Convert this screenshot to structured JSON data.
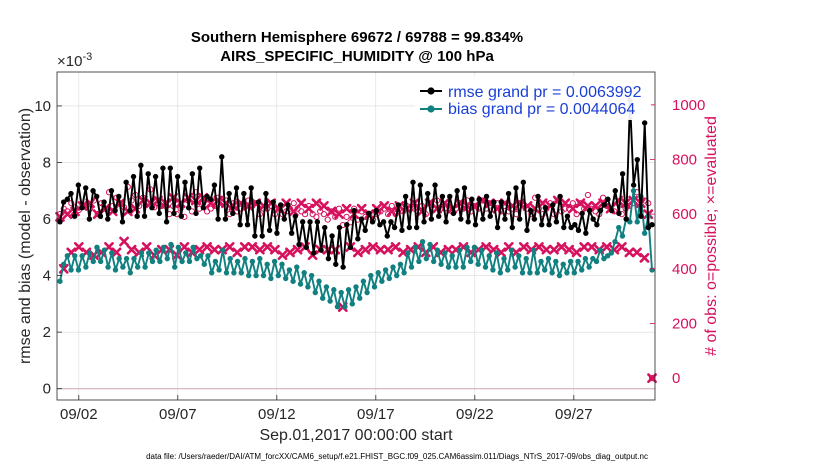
{
  "chart_data": {
    "type": "line",
    "title": "Southern Hemisphere 69672 / 69788 = 99.834%",
    "subtitle": "AIRS_SPECIFIC_HUMIDITY @ 100 hPa",
    "xlabel": "Sep.01,2017 00:00:00 start",
    "ylabel": "rmse and bias (model - observation)",
    "y2label": "# of obs: o=possible; ×=evaluated",
    "y_exponent": "×10",
    "y_exponent_power": "-3",
    "x_tick_labels": [
      "09/02",
      "09/07",
      "09/12",
      "09/17",
      "09/22",
      "09/27"
    ],
    "x_tick_values": [
      2,
      7,
      12,
      17,
      22,
      27
    ],
    "xlim": [
      0.9,
      31.1
    ],
    "y_tick_labels": [
      "0",
      "2",
      "4",
      "6",
      "8",
      "10"
    ],
    "y_tick_values": [
      0,
      2,
      4,
      6,
      8,
      10
    ],
    "ylim": [
      -0.4,
      11.2
    ],
    "y2_tick_labels": [
      "0",
      "200",
      "400",
      "600",
      "800",
      "1000"
    ],
    "y2_tick_values": [
      0,
      200,
      400,
      600,
      800,
      1000
    ],
    "y2lim": [
      -80,
      1120
    ],
    "legend_location": "top-right",
    "colors": {
      "rmse": "#000000",
      "bias": "#118080",
      "obs": "#d6115e"
    },
    "series": [
      {
        "name": "rmse grand pr = 0.0063992",
        "axis": "left",
        "values": [
          5.9,
          6.6,
          6.7,
          6.9,
          6.1,
          7.2,
          6.4,
          7.1,
          6.0,
          7.0,
          6.8,
          6.1,
          6.6,
          6.0,
          7.0,
          6.3,
          6.8,
          5.9,
          7.3,
          6.3,
          7.5,
          6.1,
          7.9,
          6.1,
          7.6,
          6.4,
          7.5,
          6.2,
          7.8,
          5.9,
          7.8,
          6.2,
          7.5,
          6.1,
          7.3,
          6.4,
          7.6,
          6.2,
          7.8,
          6.4,
          6.8,
          6.7,
          7.2,
          6.0,
          8.2,
          6.0,
          6.9,
          6.2,
          7.1,
          5.8,
          6.9,
          5.8,
          7.1,
          5.4,
          6.6,
          5.4,
          6.9,
          5.6,
          6.6,
          5.5,
          6.5,
          6.0,
          6.5,
          5.5,
          6.1,
          5.1,
          5.9,
          5.0,
          5.9,
          4.8,
          5.9,
          4.9,
          5.7,
          4.6,
          5.4,
          4.4,
          5.7,
          4.3,
          5.8,
          5.0,
          6.3,
          5.3,
          6.0,
          5.6,
          6.2,
          5.9,
          6.3,
          5.8,
          5.9,
          5.4,
          5.9,
          5.7,
          6.5,
          5.6,
          6.8,
          5.7,
          7.3,
          5.7,
          7.2,
          5.9,
          6.9,
          6.0,
          7.2,
          6.1,
          6.8,
          5.9,
          6.8,
          6.2,
          7.0,
          6.0,
          7.1,
          5.9,
          6.7,
          5.8,
          6.7,
          6.0,
          6.8,
          6.1,
          6.6,
          5.7,
          6.6,
          6.0,
          6.9,
          5.7,
          7.1,
          6.0,
          7.3,
          5.6,
          6.3,
          6.0,
          6.8,
          5.8,
          6.4,
          5.8,
          6.5,
          5.9,
          6.8,
          5.7,
          6.1,
          5.7,
          5.8,
          5.6,
          6.2,
          5.5,
          6.3,
          6.0,
          5.8,
          6.3,
          6.5,
          6.7,
          6.3,
          7.0,
          6.2,
          7.6,
          6.0,
          10.2,
          7.2,
          8.1,
          6.1,
          9.4,
          5.7,
          5.8
        ]
      },
      {
        "name": "bias grand pr = 0.0044064",
        "axis": "left",
        "values": [
          3.8,
          4.4,
          4.7,
          4.2,
          4.7,
          4.2,
          4.7,
          4.3,
          4.8,
          4.5,
          5.0,
          4.5,
          4.9,
          4.3,
          4.8,
          4.2,
          4.6,
          4.3,
          4.6,
          4.1,
          4.6,
          4.3,
          4.8,
          4.3,
          4.8,
          4.5,
          4.9,
          4.5,
          5.0,
          4.6,
          5.1,
          4.3,
          5.0,
          4.5,
          4.8,
          4.5,
          5.0,
          4.6,
          4.7,
          4.4,
          4.7,
          4.1,
          4.5,
          4.2,
          4.9,
          4.1,
          4.6,
          4.1,
          4.5,
          4.1,
          4.6,
          4.0,
          4.5,
          4.0,
          4.6,
          4.0,
          4.4,
          3.9,
          4.5,
          4.0,
          4.4,
          3.9,
          4.2,
          3.8,
          4.3,
          3.7,
          4.1,
          3.6,
          4.0,
          3.4,
          3.8,
          3.2,
          3.6,
          3.1,
          3.5,
          2.9,
          3.4,
          2.9,
          3.5,
          3.0,
          3.6,
          3.2,
          3.8,
          3.4,
          4.0,
          3.6,
          4.1,
          3.8,
          4.2,
          3.9,
          4.3,
          4.0,
          4.4,
          4.1,
          4.8,
          4.3,
          5.0,
          4.5,
          5.2,
          4.6,
          5.1,
          4.5,
          4.9,
          4.4,
          4.8,
          4.3,
          4.7,
          4.3,
          4.9,
          4.3,
          5.0,
          4.5,
          5.0,
          4.4,
          4.9,
          4.3,
          4.7,
          4.2,
          4.8,
          4.1,
          4.6,
          4.2,
          4.9,
          4.3,
          4.7,
          4.1,
          4.6,
          4.1,
          4.9,
          4.1,
          4.5,
          4.2,
          4.6,
          4.1,
          4.5,
          4.0,
          4.4,
          4.1,
          4.5,
          4.1,
          4.5,
          4.2,
          4.6,
          4.3,
          4.6,
          4.5,
          4.9,
          4.6,
          4.7,
          4.8,
          5.2,
          5.7,
          5.4,
          6.0,
          5.9,
          7.0,
          5.9,
          6.8,
          5.5,
          6.1,
          4.2
        ]
      },
      {
        "name": "possible",
        "axis": "right",
        "marker": "circle",
        "values": [
          600,
          620,
          610,
          640,
          625,
          615,
          630,
          625,
          620,
          650,
          600,
          640,
          620,
          680,
          630,
          660,
          640,
          625,
          700,
          650,
          670,
          630,
          660,
          640,
          690,
          625,
          640,
          630,
          630,
          600,
          630,
          600,
          620,
          590,
          650,
          610,
          680,
          620,
          640,
          610,
          620,
          630,
          660,
          640,
          650,
          600,
          640,
          610,
          620,
          630,
          650,
          630,
          640,
          600,
          620,
          620,
          630,
          600,
          620,
          600,
          610,
          620,
          640,
          620,
          610,
          600,
          630,
          600,
          590,
          610,
          600,
          580,
          610,
          590,
          620,
          560,
          590,
          570,
          620,
          580,
          610,
          590,
          600,
          580,
          600,
          610,
          620,
          600,
          630,
          600,
          620,
          610,
          630,
          620,
          620,
          610,
          630,
          600,
          640,
          620,
          650,
          620,
          620,
          630,
          610,
          620,
          640,
          620,
          650,
          610,
          630,
          620,
          650,
          620,
          640,
          620,
          640,
          610,
          630,
          610,
          620,
          600,
          640,
          630,
          620,
          600,
          660,
          620,
          600,
          620,
          640,
          600,
          650,
          610,
          620,
          620,
          640,
          600,
          640,
          620,
          670,
          620,
          610,
          600,
          660,
          630,
          620,
          610,
          640,
          600,
          620,
          630,
          640,
          680,
          610,
          650,
          640,
          0
        ]
      },
      {
        "name": "evaluated",
        "axis": "right",
        "marker": "x",
        "values": [
          590,
          400,
          600,
          460,
          610,
          480,
          630,
          460,
          640,
          450,
          600,
          460,
          620,
          480,
          610,
          460,
          640,
          500,
          610,
          470,
          620,
          460,
          650,
          480,
          640,
          450,
          650,
          470,
          640,
          470,
          660,
          450,
          640,
          480,
          660,
          460,
          650,
          470,
          660,
          480,
          640,
          470,
          650,
          470,
          640,
          480,
          630,
          460,
          640,
          480,
          630,
          480,
          640,
          470,
          630,
          480,
          640,
          470,
          620,
          450,
          640,
          460,
          610,
          470,
          640,
          480,
          620,
          450,
          640,
          470,
          630,
          470,
          610,
          470,
          600,
          260,
          620,
          480,
          600,
          460,
          620,
          470,
          600,
          480,
          620,
          470,
          630,
          470,
          610,
          480,
          630,
          460,
          620,
          470,
          640,
          480,
          610,
          460,
          640,
          480,
          620,
          460,
          640,
          470,
          620,
          470,
          640,
          480,
          630,
          460,
          630,
          470,
          650,
          480,
          640,
          470,
          620,
          460,
          640,
          480,
          630,
          460,
          640,
          480,
          630,
          470,
          620,
          480,
          640,
          470,
          630,
          470,
          650,
          480,
          640,
          470,
          620,
          460,
          640,
          480,
          630,
          480,
          630,
          470,
          640,
          480,
          620,
          470,
          650,
          480,
          640,
          460,
          650,
          460,
          640,
          440,
          600,
          0
        ]
      }
    ]
  },
  "footer": "data file: /Users/raeder/DAI/ATM_forcXX/CAM6_setup/f.e21.FHIST_BGC.f09_025.CAM6assim.011/Diags_NTrS_2017-09/obs_diag_output.nc"
}
